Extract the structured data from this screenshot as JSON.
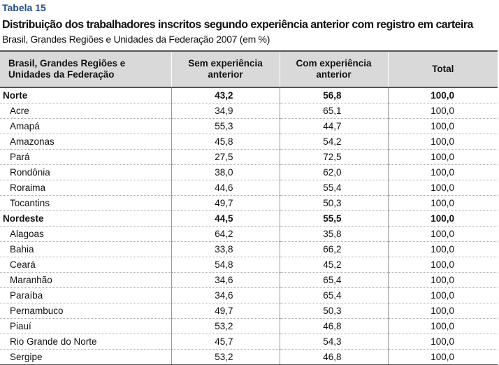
{
  "header": {
    "label": "Tabela 15",
    "title": "Distribuição dos trabalhadores inscritos segundo experiência anterior com registro em carteira",
    "subtitle": "Brasil, Grandes Regiões e Unidades da Federação 2007 (em %)"
  },
  "table": {
    "columns": [
      "Brasil, Grandes Regiões e Unidades da Federação",
      "Sem experiência anterior",
      "Com experiência anterior",
      "Total"
    ],
    "rows": [
      {
        "kind": "region",
        "cells": [
          "Norte",
          "43,2",
          "56,8",
          "100,0"
        ]
      },
      {
        "kind": "state",
        "cells": [
          "Acre",
          "34,9",
          "65,1",
          "100,0"
        ]
      },
      {
        "kind": "state",
        "cells": [
          "Amapá",
          "55,3",
          "44,7",
          "100,0"
        ]
      },
      {
        "kind": "state",
        "cells": [
          "Amazonas",
          "45,8",
          "54,2",
          "100,0"
        ]
      },
      {
        "kind": "state",
        "cells": [
          "Pará",
          "27,5",
          "72,5",
          "100,0"
        ]
      },
      {
        "kind": "state",
        "cells": [
          "Rondônia",
          "38,0",
          "62,0",
          "100,0"
        ]
      },
      {
        "kind": "state",
        "cells": [
          "Roraima",
          "44,6",
          "55,4",
          "100,0"
        ]
      },
      {
        "kind": "state",
        "cells": [
          "Tocantins",
          "49,7",
          "50,3",
          "100,0"
        ]
      },
      {
        "kind": "region",
        "cells": [
          "Nordeste",
          "44,5",
          "55,5",
          "100,0"
        ]
      },
      {
        "kind": "state",
        "cells": [
          "Alagoas",
          "64,2",
          "35,8",
          "100,0"
        ]
      },
      {
        "kind": "state",
        "cells": [
          "Bahia",
          "33,8",
          "66,2",
          "100,0"
        ]
      },
      {
        "kind": "state",
        "cells": [
          "Ceará",
          "54,8",
          "45,2",
          "100,0"
        ]
      },
      {
        "kind": "state",
        "cells": [
          "Maranhão",
          "34,6",
          "65,4",
          "100,0"
        ]
      },
      {
        "kind": "state",
        "cells": [
          "Paraíba",
          "34,6",
          "65,4",
          "100,0"
        ]
      },
      {
        "kind": "state",
        "cells": [
          "Pernambuco",
          "49,7",
          "50,3",
          "100,0"
        ]
      },
      {
        "kind": "state",
        "cells": [
          "Piauí",
          "53,2",
          "46,8",
          "100,0"
        ]
      },
      {
        "kind": "state",
        "cells": [
          "Rio Grande do Norte",
          "45,7",
          "54,3",
          "100,0"
        ]
      },
      {
        "kind": "state",
        "cells": [
          "Sergipe",
          "53,2",
          "46,8",
          "100,0"
        ]
      }
    ]
  }
}
